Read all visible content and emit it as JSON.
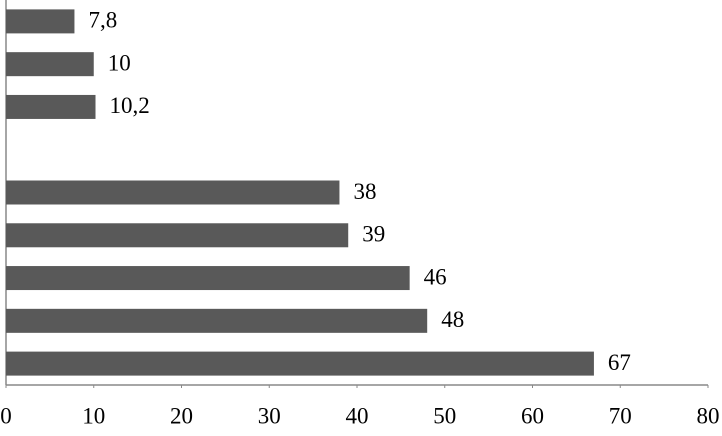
{
  "chart_data": {
    "type": "barh",
    "categories": [
      null,
      null,
      null,
      null,
      null,
      null,
      null,
      null,
      null
    ],
    "values": [
      7.8,
      10,
      10.2,
      null,
      38,
      39,
      46,
      48,
      67
    ],
    "value_labels": [
      "7,8",
      "10",
      "10,2",
      null,
      "38",
      "39",
      "46",
      "48",
      "67"
    ],
    "color": "#595959",
    "xlim": [
      0,
      80
    ],
    "xticks": [
      0,
      10,
      20,
      30,
      40,
      50,
      60,
      70,
      80
    ]
  }
}
